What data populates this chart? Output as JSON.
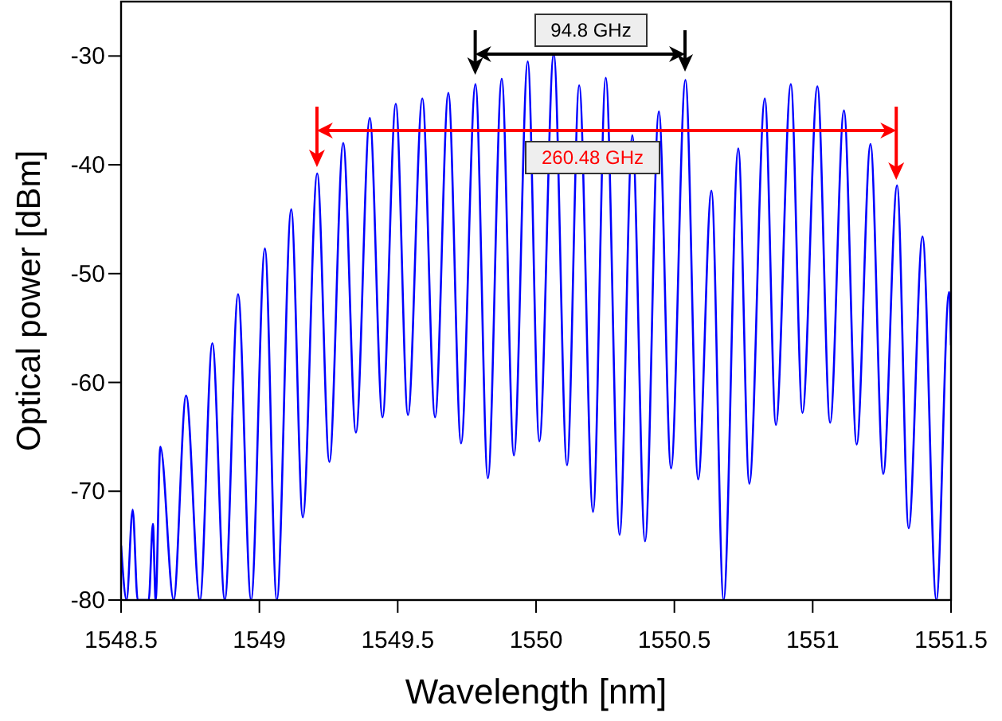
{
  "chart_data": {
    "type": "line",
    "xlabel": "Wavelength [nm]",
    "ylabel": "Optical power [dBm]",
    "xlim": [
      1548.5,
      1551.5
    ],
    "xticks": [
      1548.5,
      1549,
      1549.5,
      1550,
      1550.5,
      1551,
      1551.5
    ],
    "ylim": [
      -80,
      -25
    ],
    "yticks": [
      -80,
      -70,
      -60,
      -50,
      -40,
      -30
    ],
    "grid": false,
    "marker": "none",
    "line_style": "solid",
    "series": [
      {
        "color": "#0000ff",
        "x": [
          1548.5,
          1548.52,
          1548.542,
          1548.56,
          1548.6,
          1548.615,
          1548.625,
          1548.642,
          1548.69,
          1548.735,
          1548.785,
          1548.83,
          1548.875,
          1548.923,
          1548.97,
          1549.02,
          1549.063,
          1549.115,
          1549.157,
          1549.209,
          1549.253,
          1549.303,
          1549.349,
          1549.399,
          1549.445,
          1549.493,
          1549.537,
          1549.589,
          1549.635,
          1549.683,
          1549.729,
          1549.781,
          1549.826,
          1549.876,
          1549.92,
          1549.97,
          1550.012,
          1550.064,
          1550.112,
          1550.156,
          1550.206,
          1550.252,
          1550.302,
          1550.348,
          1550.394,
          1550.444,
          1550.488,
          1550.54,
          1550.586,
          1550.634,
          1550.678,
          1550.731,
          1550.771,
          1550.827,
          1550.867,
          1550.921,
          1550.963,
          1551.017,
          1551.063,
          1551.113,
          1551.159,
          1551.209,
          1551.255,
          1551.305,
          1551.347,
          1551.397,
          1551.447,
          1551.493,
          1551.5
        ],
        "values": [
          -75,
          -80,
          -71.7,
          -80,
          -80,
          -73,
          -80,
          -65.9,
          -80,
          -61.2,
          -80,
          -56.4,
          -80,
          -51.9,
          -80,
          -47.7,
          -80,
          -44.1,
          -72.4,
          -40.8,
          -67.3,
          -38,
          -64.6,
          -35.7,
          -63.2,
          -34.4,
          -63,
          -33.9,
          -63.2,
          -33.4,
          -65.6,
          -32.6,
          -68.8,
          -32.1,
          -66.7,
          -30.5,
          -65.4,
          -29.8,
          -67.6,
          -32.7,
          -71.9,
          -32,
          -74,
          -37.3,
          -74.6,
          -35.1,
          -67.9,
          -32.2,
          -68.9,
          -42.4,
          -80,
          -38.5,
          -69.3,
          -33.9,
          -63.9,
          -32.6,
          -62.8,
          -32.8,
          -63.7,
          -35,
          -65.7,
          -38.1,
          -68.4,
          -41.9,
          -73.4,
          -46.6,
          -80,
          -51.7,
          -56.6
        ]
      }
    ],
    "annotations": [
      "94.8 GHz",
      "260.48 GHz"
    ]
  }
}
